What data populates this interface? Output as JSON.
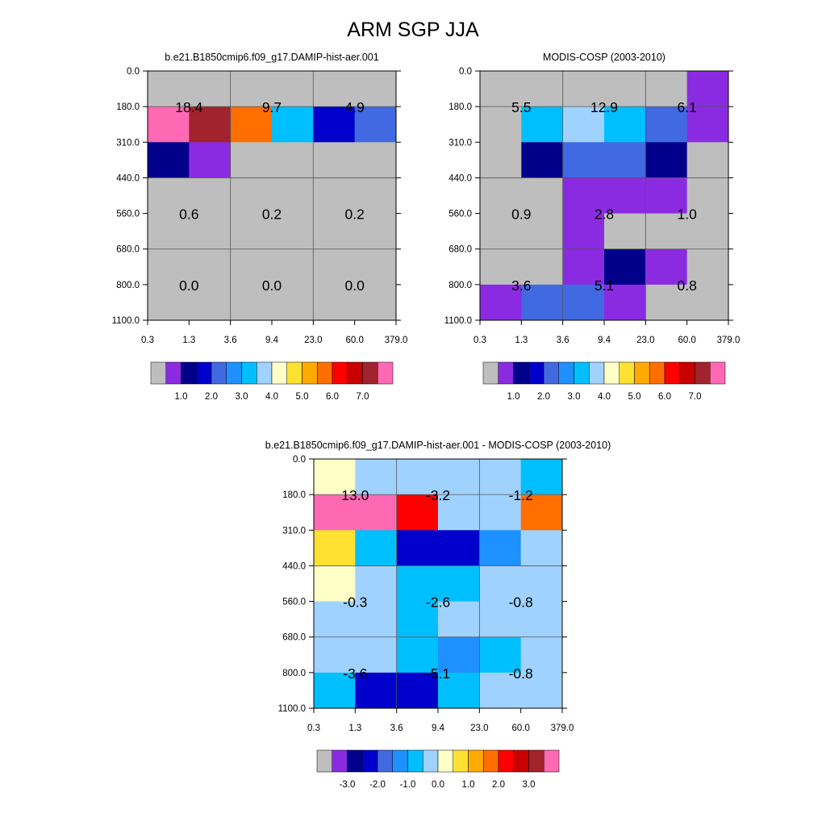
{
  "title": "ARM SGP JJA",
  "colors": {
    "missing": "#bebebe",
    "abs_palette": [
      "#bebebe",
      "#8a2be2",
      "#00008b",
      "#0000cd",
      "#4169e1",
      "#1e90ff",
      "#00bfff",
      "#a0d2ff",
      "#ffffc8",
      "#ffe132",
      "#ffaa00",
      "#ff6e00",
      "#ff0000",
      "#c80000",
      "#a0232d",
      "#ff69b4"
    ],
    "diff_palette": [
      "#bebebe",
      "#8a2be2",
      "#00008b",
      "#0000cd",
      "#4169e1",
      "#1e90ff",
      "#00bfff",
      "#a0d2ff",
      "#ffffc8",
      "#ffe132",
      "#ffaa00",
      "#ff6e00",
      "#ff0000",
      "#c80000",
      "#a0232d",
      "#ff69b4"
    ]
  },
  "chart_data": [
    {
      "type": "heatmap",
      "title": "b.e21.B1850cmip6.f09_g17.DAMIP-hist-aer.001",
      "x_ticks": [
        "0.3",
        "1.3",
        "3.6",
        "9.4",
        "23.0",
        "60.0",
        "379.0"
      ],
      "y_ticks": [
        "0.0",
        "180.0",
        "310.0",
        "440.0",
        "560.0",
        "680.0",
        "800.0",
        "1100.0"
      ],
      "cell_color_index": [
        [
          0,
          0,
          0,
          0,
          0,
          0
        ],
        [
          15,
          14,
          11,
          6,
          3,
          4
        ],
        [
          2,
          1,
          0,
          0,
          0,
          0
        ],
        [
          0,
          0,
          0,
          0,
          0,
          0
        ],
        [
          0,
          0,
          0,
          0,
          0,
          0
        ],
        [
          0,
          0,
          0,
          0,
          0,
          0
        ],
        [
          0,
          0,
          0,
          0,
          0,
          0
        ]
      ],
      "annotations": [
        {
          "row": "low",
          "col": "small",
          "value": "0.0"
        },
        {
          "row": "low",
          "col": "medium",
          "value": "0.0"
        },
        {
          "row": "low",
          "col": "large",
          "value": "0.0"
        },
        {
          "row": "mid",
          "col": "small",
          "value": "0.6"
        },
        {
          "row": "mid",
          "col": "medium",
          "value": "0.2"
        },
        {
          "row": "mid",
          "col": "large",
          "value": "0.2"
        },
        {
          "row": "high",
          "col": "small",
          "value": "18.4"
        },
        {
          "row": "high",
          "col": "medium",
          "value": "9.7"
        },
        {
          "row": "high",
          "col": "large",
          "value": "4.9"
        }
      ],
      "colorbar_labels": [
        "1.0",
        "2.0",
        "3.0",
        "4.0",
        "5.0",
        "6.0",
        "7.0"
      ]
    },
    {
      "type": "heatmap",
      "title": "MODIS-COSP (2003-2010)",
      "x_ticks": [
        "0.3",
        "1.3",
        "3.6",
        "9.4",
        "23.0",
        "60.0",
        "379.0"
      ],
      "y_ticks": [
        "0.0",
        "180.0",
        "310.0",
        "440.0",
        "560.0",
        "680.0",
        "800.0",
        "1100.0"
      ],
      "cell_color_index": [
        [
          0,
          0,
          0,
          0,
          0,
          1
        ],
        [
          0,
          6,
          7,
          6,
          4,
          1
        ],
        [
          0,
          2,
          4,
          4,
          2,
          0
        ],
        [
          0,
          0,
          1,
          1,
          1,
          0
        ],
        [
          0,
          0,
          1,
          0,
          0,
          0
        ],
        [
          0,
          0,
          1,
          2,
          1,
          0
        ],
        [
          1,
          4,
          4,
          1,
          0,
          0
        ]
      ],
      "annotations": [
        {
          "row": "low",
          "col": "small",
          "value": "3.6"
        },
        {
          "row": "low",
          "col": "medium",
          "value": "5.1"
        },
        {
          "row": "low",
          "col": "large",
          "value": "0.8"
        },
        {
          "row": "mid",
          "col": "small",
          "value": "0.9"
        },
        {
          "row": "mid",
          "col": "medium",
          "value": "2.8"
        },
        {
          "row": "mid",
          "col": "large",
          "value": "1.0"
        },
        {
          "row": "high",
          "col": "small",
          "value": "5.5"
        },
        {
          "row": "high",
          "col": "medium",
          "value": "12.9"
        },
        {
          "row": "high",
          "col": "large",
          "value": "6.1"
        }
      ],
      "colorbar_labels": [
        "1.0",
        "2.0",
        "3.0",
        "4.0",
        "5.0",
        "6.0",
        "7.0"
      ]
    },
    {
      "type": "heatmap",
      "title": "b.e21.B1850cmip6.f09_g17.DAMIP-hist-aer.001 - MODIS-COSP (2003-2010)",
      "x_ticks": [
        "0.3",
        "1.3",
        "3.6",
        "9.4",
        "23.0",
        "60.0",
        "379.0"
      ],
      "y_ticks": [
        "0.0",
        "180.0",
        "310.0",
        "440.0",
        "560.0",
        "680.0",
        "800.0",
        "1100.0"
      ],
      "cell_color_index": [
        [
          8,
          7,
          7,
          7,
          7,
          6
        ],
        [
          15,
          15,
          12,
          7,
          7,
          11
        ],
        [
          9,
          6,
          3,
          3,
          5,
          7
        ],
        [
          8,
          7,
          6,
          6,
          7,
          7
        ],
        [
          7,
          7,
          6,
          7,
          7,
          7
        ],
        [
          7,
          7,
          6,
          5,
          6,
          7
        ],
        [
          6,
          3,
          3,
          6,
          7,
          7
        ]
      ],
      "annotations": [
        {
          "row": "low",
          "col": "small",
          "value": "-3.6"
        },
        {
          "row": "low",
          "col": "medium",
          "value": "-5.1"
        },
        {
          "row": "low",
          "col": "large",
          "value": "-0.8"
        },
        {
          "row": "mid",
          "col": "small",
          "value": "-0.3"
        },
        {
          "row": "mid",
          "col": "medium",
          "value": "-2.6"
        },
        {
          "row": "mid",
          "col": "large",
          "value": "-0.8"
        },
        {
          "row": "high",
          "col": "small",
          "value": "13.0"
        },
        {
          "row": "high",
          "col": "medium",
          "value": "-3.2"
        },
        {
          "row": "high",
          "col": "large",
          "value": "-1.2"
        }
      ],
      "colorbar_labels": [
        "-3.0",
        "-2.0",
        "-1.0",
        "0.0",
        "1.0",
        "2.0",
        "3.0"
      ]
    }
  ]
}
